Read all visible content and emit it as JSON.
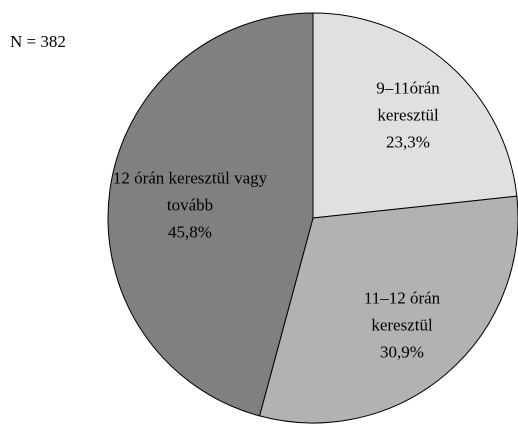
{
  "chart_data": {
    "type": "pie",
    "annotation": "N = 382",
    "categories": [
      "9–11órán keresztül",
      "11–12 órán keresztül",
      "12 órán keresztül vagy tovább"
    ],
    "values": [
      23.3,
      30.9,
      45.8
    ],
    "value_labels": [
      "23,3%",
      "30,9%",
      "45,8%"
    ],
    "colors": [
      "#e0e0e0",
      "#b2b2b2",
      "#808080"
    ]
  }
}
